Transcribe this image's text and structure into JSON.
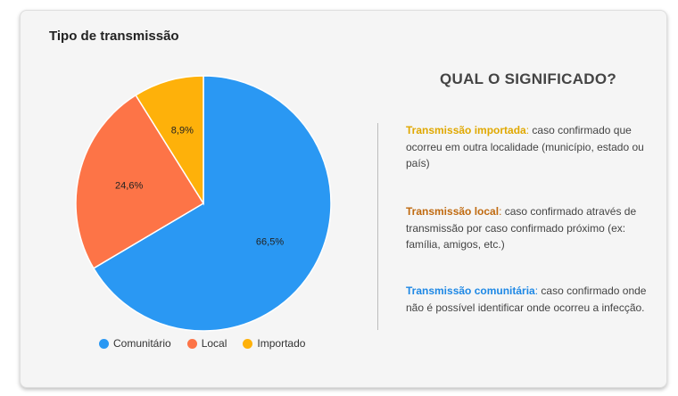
{
  "card": {
    "title": "Tipo de transmissão"
  },
  "chart_data": {
    "type": "pie",
    "title": "Tipo de transmissão",
    "slices": [
      {
        "name": "Comunitário",
        "value": 66.5,
        "label": "66,5%",
        "color": "#2a98f3"
      },
      {
        "name": "Local",
        "value": 24.6,
        "label": "24,6%",
        "color": "#fd7447"
      },
      {
        "name": "Importado",
        "value": 8.9,
        "label": "8,9%",
        "color": "#feb10a"
      }
    ],
    "legend": {
      "placement": "bottom",
      "items": [
        {
          "label": "Comunitário",
          "color": "#2a98f3"
        },
        {
          "label": "Local",
          "color": "#fd7447"
        },
        {
          "label": "Importado",
          "color": "#feb10a"
        }
      ]
    }
  },
  "explanation": {
    "heading": "QUAL O SIGNIFICADO?",
    "items": [
      {
        "term": "Transmissão importada",
        "text": " caso confirmado que ocorreu em outra localidade (município, estado ou país)",
        "color": "#e0a800"
      },
      {
        "term": "Transmissão local",
        "text": " caso confirmado através de transmissão por caso confirmado próximo (ex: família, amigos, etc.)",
        "color": "#c06a10"
      },
      {
        "term": "Transmissão comunitária",
        "text": " caso confirmado onde não é possível identificar onde ocorreu a infecção.",
        "color": "#1e88e5"
      }
    ]
  }
}
